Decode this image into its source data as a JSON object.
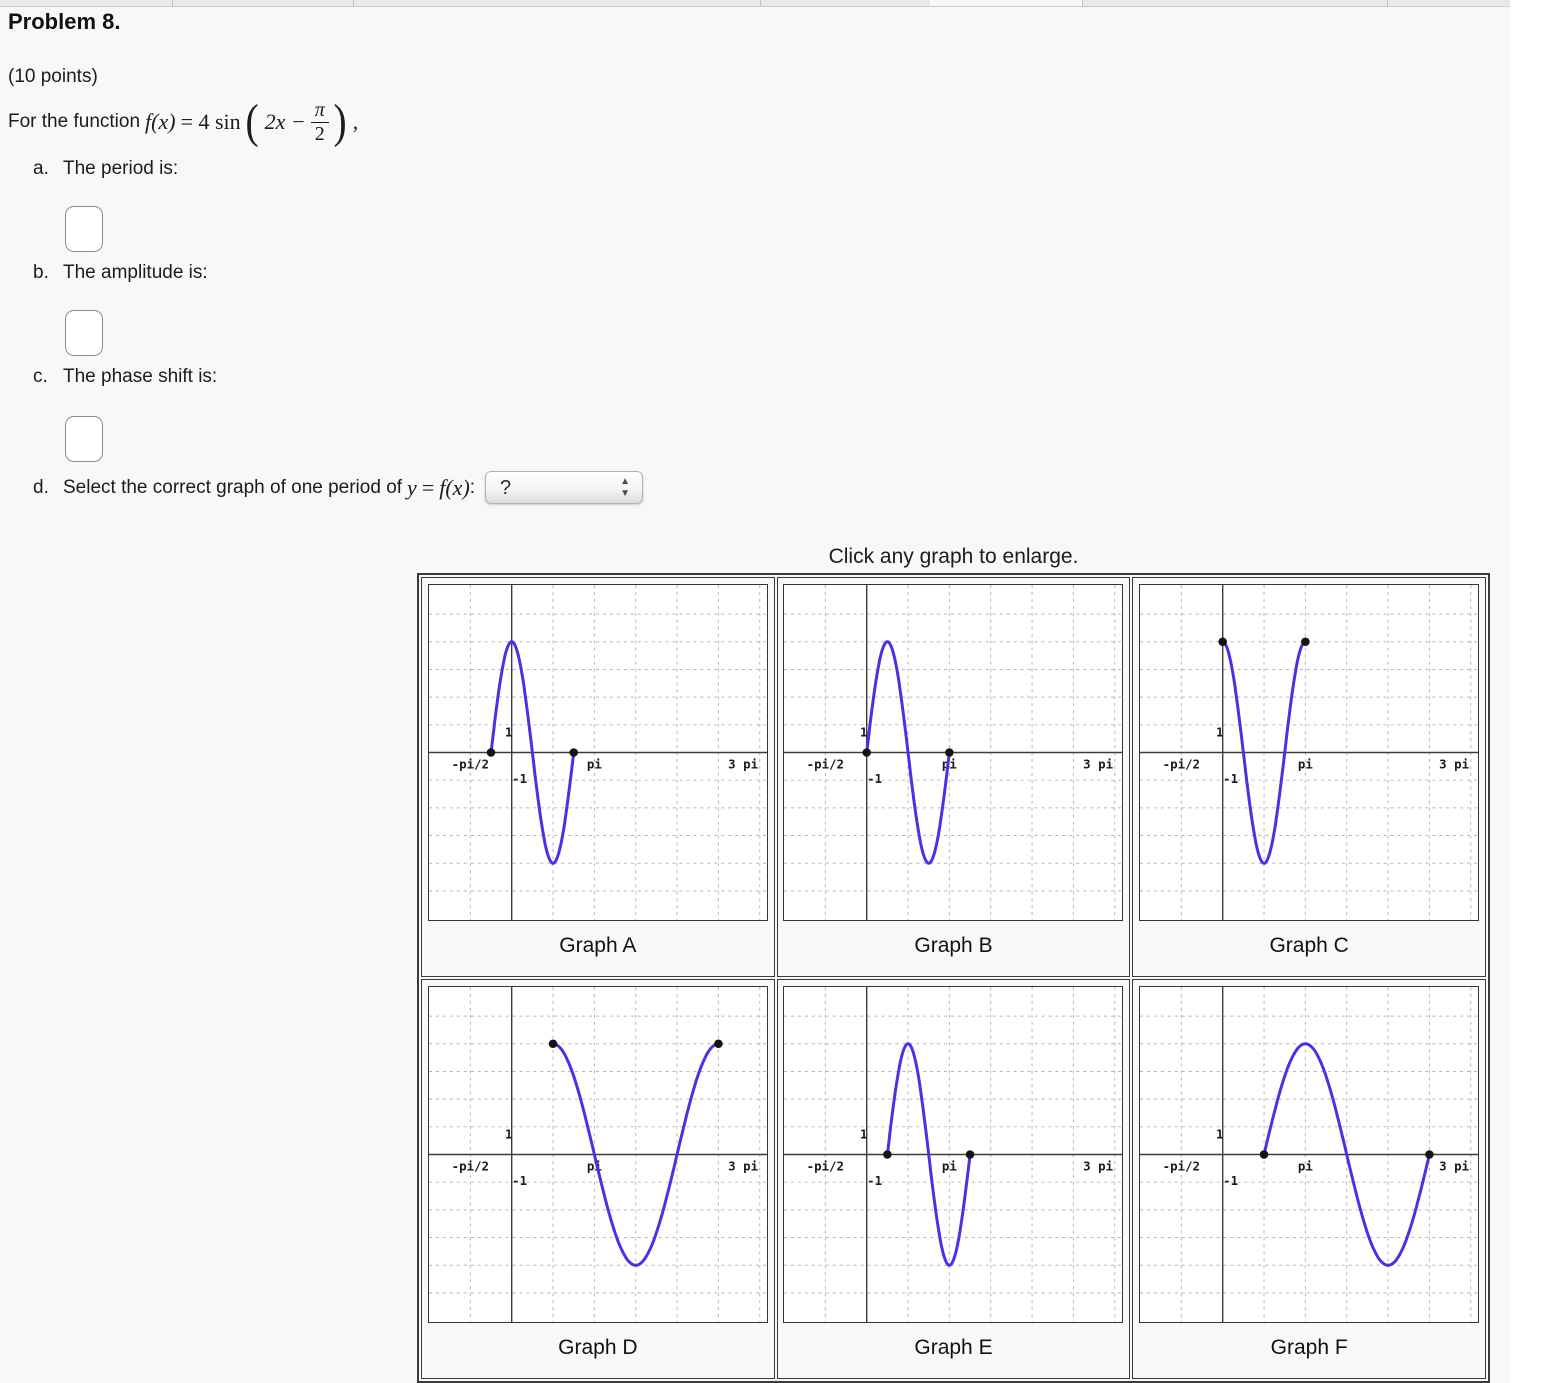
{
  "page": {
    "title": "Problem 8.",
    "points": "(10 points)",
    "math": {
      "prefix": "For the function",
      "fx": "f(x)",
      "mid": "= 4 sin",
      "open": "(",
      "arg": "2x −",
      "frac_num": "π",
      "frac_den": "2",
      "close": ")",
      "comma": ","
    },
    "items": [
      {
        "label": "a.",
        "text": "The period is:"
      },
      {
        "label": "b.",
        "text": "The amplitude is:"
      },
      {
        "label": "c.",
        "text": "The phase shift is:"
      }
    ],
    "item_d": {
      "label": "d.",
      "text": "Select the correct graph of one period of",
      "math_y": "y",
      "math_eq": "=",
      "math_fx": "f(x)",
      "colon": ":",
      "select_value": "?"
    },
    "enlarge_hint": "Click any graph to enlarge."
  },
  "icons": {
    "select_up_arrow": "▲",
    "select_down_arrow": "▼"
  },
  "colors": {
    "curve": "#4c2fe6",
    "grid": "#b5b5b5",
    "axis": "#3b3b3b",
    "dot": "#141414",
    "page_background": "#f8f8f8"
  },
  "chart_data": {
    "type": "line",
    "axes": {
      "x_min": -3.1416,
      "x_max": 9.7,
      "y_min": -6.05,
      "y_max": 6.05,
      "x_grid_step": 1.5708,
      "y_grid_step": 1,
      "grid": "dashed",
      "x_ticks": [
        {
          "x": -1.5708,
          "label": "-pi/2"
        },
        {
          "x": 3.1416,
          "label": "pi"
        },
        {
          "x": 9.4248,
          "label": "3 pi"
        }
      ],
      "y_ticks": [
        {
          "y": 1,
          "label": "1"
        },
        {
          "y": -1,
          "label": "-1"
        }
      ]
    },
    "graphs": [
      {
        "label": "Graph A",
        "function": "y = 4 sin(2x + π/2)",
        "amplitude": 4,
        "angular_freq": 2,
        "phase": 1.5708,
        "domain": [
          -0.7854,
          2.3562
        ],
        "endpoints": [
          [
            -0.7854,
            0
          ],
          [
            2.3562,
            0
          ]
        ]
      },
      {
        "label": "Graph B",
        "function": "y = 4 sin(2x)",
        "amplitude": 4,
        "angular_freq": 2,
        "phase": 0,
        "domain": [
          0,
          3.1416
        ],
        "endpoints": [
          [
            0,
            0
          ],
          [
            3.1416,
            0
          ]
        ]
      },
      {
        "label": "Graph C",
        "function": "y = 4 cos(2x)",
        "amplitude": 4,
        "angular_freq": 2,
        "phase": 1.5708,
        "domain": [
          0,
          3.1416
        ],
        "endpoints": [
          [
            0,
            4
          ],
          [
            3.1416,
            4
          ]
        ]
      },
      {
        "label": "Graph D",
        "function": "y = 4 sin(x)",
        "amplitude": 4,
        "angular_freq": 1,
        "phase": 0,
        "domain": [
          1.5708,
          7.854
        ],
        "endpoints": [
          [
            1.5708,
            4
          ],
          [
            7.854,
            4
          ]
        ]
      },
      {
        "label": "Graph E",
        "function": "y = 4 sin(2x − π/2)",
        "amplitude": 4,
        "angular_freq": 2,
        "phase": -1.5708,
        "domain": [
          0.7854,
          3.927
        ],
        "endpoints": [
          [
            0.7854,
            0
          ],
          [
            3.927,
            0
          ]
        ]
      },
      {
        "label": "Graph F",
        "function": "y = 4 sin(x − π/2)",
        "amplitude": 4,
        "angular_freq": 1,
        "phase": -1.5708,
        "domain": [
          1.5708,
          7.854
        ],
        "endpoints": [
          [
            1.5708,
            0
          ],
          [
            7.854,
            0
          ]
        ]
      }
    ]
  }
}
